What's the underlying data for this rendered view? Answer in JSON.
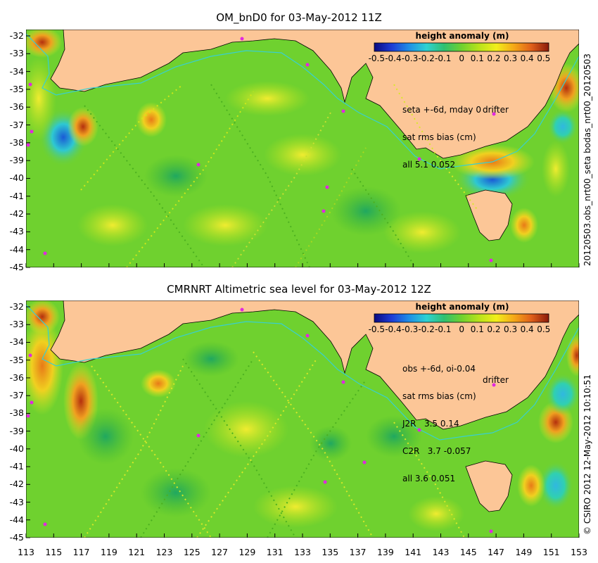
{
  "panels": [
    {
      "title": "OM_bnD0 for 03-May-2012 11Z",
      "colorbar_title": "height anomaly (m)",
      "stats": [
        "seta +-6d, mday 0",
        "sat rms bias (cm)",
        "all 5.1 0.052"
      ],
      "drifter_label": "drifter",
      "side_label": "20120503.obs_nrt00_seta    bodas_nrt00_20120503"
    },
    {
      "title": "CMRNRT Altimetric sea level  for 03-May-2012 12Z",
      "colorbar_title": "height anomaly (m)",
      "stats": [
        "obs +-6d, oi-0.04",
        "sat rms bias (cm)",
        "J2R   3.5 0.14",
        "C2R   3.7 -0.057",
        "all 3.6 0.051"
      ],
      "drifter_label": "drifter",
      "side_label": "© CSIRO 2012   12-May-2012 10:10:51"
    }
  ],
  "colorbar_ticks": [
    "-0.5",
    "-0.4",
    "-0.3",
    "-0.2",
    "-0.1",
    "0",
    "0.1",
    "0.2",
    "0.3",
    "0.4",
    "0.5"
  ],
  "y_ticks": [
    "-32",
    "-33",
    "-34",
    "-35",
    "-36",
    "-37",
    "-38",
    "-39",
    "-40",
    "-41",
    "-42",
    "-43",
    "-44",
    "-45"
  ],
  "x_ticks": [
    "113",
    "115",
    "117",
    "119",
    "121",
    "123",
    "125",
    "127",
    "129",
    "131",
    "133",
    "135",
    "137",
    "139",
    "141",
    "143",
    "145",
    "147",
    "149",
    "151",
    "153"
  ],
  "colors": {
    "land": "#fcc697",
    "ocean": "#6fd12f",
    "drifter": "#e028e0",
    "contour": "#38d0d0"
  }
}
